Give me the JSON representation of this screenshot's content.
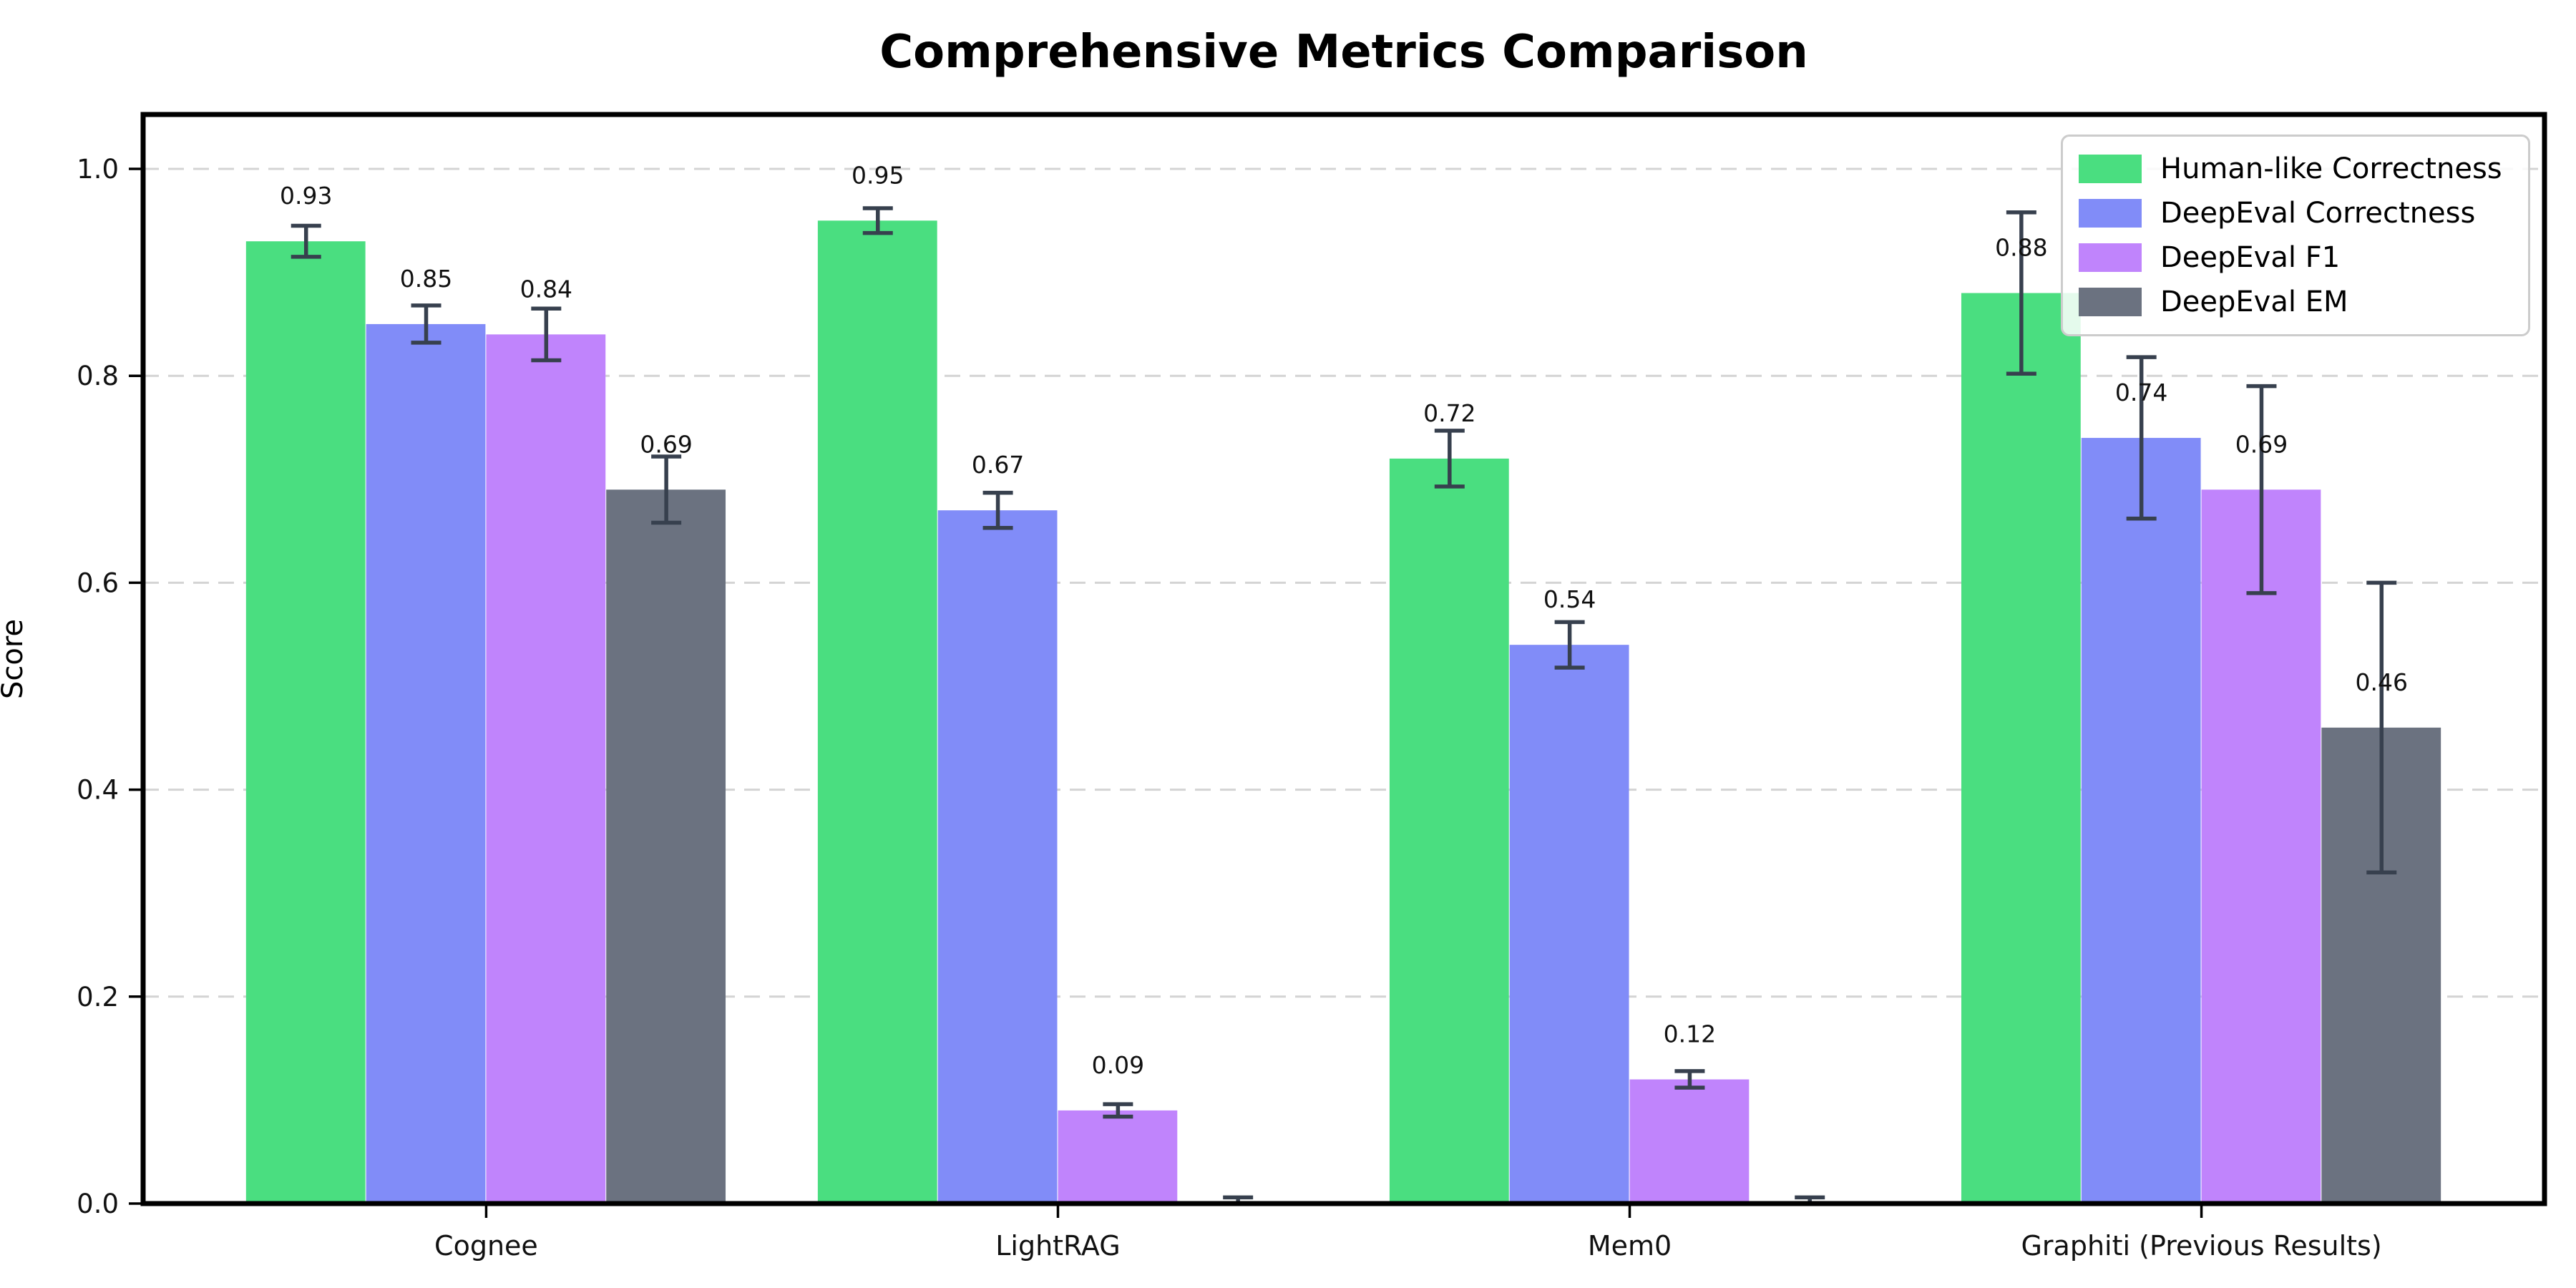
{
  "title": "Comprehensive Metrics Comparison",
  "chart_data": {
    "type": "bar",
    "title": "Comprehensive Metrics Comparison",
    "xlabel": "",
    "ylabel": "Score",
    "categories": [
      "Cognee",
      "LightRAG",
      "Mem0",
      "Graphiti (Previous Results)"
    ],
    "series": [
      {
        "name": "Human-like Correctness",
        "color": "#4ade80",
        "values": [
          0.93,
          0.95,
          0.72,
          0.88
        ],
        "errors": [
          0.015,
          0.012,
          0.027,
          0.078
        ],
        "bar_labels": [
          "0.93",
          "0.95",
          "0.72",
          "0.88"
        ]
      },
      {
        "name": "DeepEval Correctness",
        "color": "#818cf8",
        "values": [
          0.85,
          0.67,
          0.54,
          0.74
        ],
        "errors": [
          0.018,
          0.017,
          0.022,
          0.078
        ],
        "bar_labels": [
          "0.85",
          "0.67",
          "0.54",
          "0.74"
        ]
      },
      {
        "name": "DeepEval F1",
        "color": "#c084fc",
        "values": [
          0.84,
          0.09,
          0.12,
          0.69
        ],
        "errors": [
          0.025,
          0.006,
          0.008,
          0.1
        ],
        "bar_labels": [
          "0.84",
          "0.09",
          "0.12",
          "0.69"
        ]
      },
      {
        "name": "DeepEval EM",
        "color": "#6b7280",
        "values": [
          0.69,
          0.002,
          0.002,
          0.46
        ],
        "errors": [
          0.032,
          0.004,
          0.004,
          0.14
        ],
        "bar_labels": [
          "0.69",
          "",
          "",
          "0.46"
        ]
      }
    ],
    "yticks": [
      "0.0",
      "0.2",
      "0.4",
      "0.6",
      "0.8",
      "1.0"
    ],
    "ylim": [
      0.0,
      1.052
    ],
    "grid": "horizontal dashed",
    "legend_position": "upper right",
    "error_bars": true
  },
  "style_colors": {
    "bar_green": "#4ade80",
    "bar_blue": "#818cf8",
    "bar_purple": "#c084fc",
    "bar_gray": "#6b7280",
    "errorbar": "#37404e",
    "gridline": "#d4d4d4",
    "spine": "#000000",
    "text": "#111111"
  }
}
